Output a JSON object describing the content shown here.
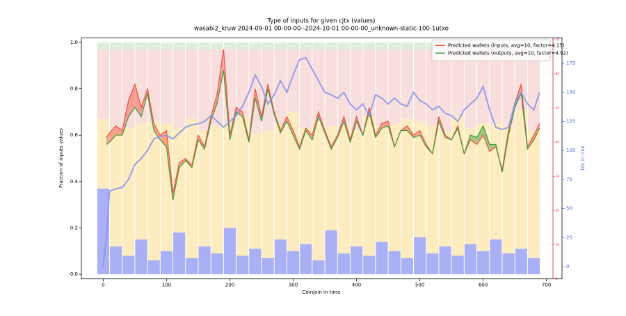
{
  "chart_data": {
    "type": "line",
    "title": "Type of inputs for given cjtx (values)",
    "subtitle": "wasabi2_kruw 2024-09-01 00-00-00--2024-10-01 00-00-00_unknown-static-100-1utxo",
    "xlabel": "Coinjoin in time",
    "ylabel": "Fraction of inputs values",
    "y2label": "btc in mix",
    "xlim": [
      -34.5,
      724.5
    ],
    "xticks": [
      0,
      100,
      200,
      300,
      400,
      500,
      600,
      700
    ],
    "ylim": [
      -0.02,
      1.02
    ],
    "yticks": [
      {
        "value": 0,
        "label": "0.0"
      },
      0.2,
      0.4,
      0.6,
      0.8,
      {
        "value": 1,
        "label": "1.0"
      }
    ],
    "y2lim": [
      -10.6,
      197
    ],
    "y2ticks": [
      0,
      25,
      50,
      75,
      100,
      125,
      150,
      175
    ],
    "y2color": "#4a6bd6",
    "y3lim": [
      0,
      70.5
    ],
    "y3ticks": [
      0,
      10,
      20,
      30,
      40,
      50,
      60,
      70
    ],
    "y3color": "#d62728",
    "legend": "upper right",
    "x": [
      0,
      5,
      10,
      20,
      30,
      40,
      50,
      60,
      70,
      80,
      90,
      100,
      110,
      120,
      130,
      140,
      150,
      160,
      170,
      180,
      190,
      200,
      210,
      220,
      230,
      240,
      250,
      260,
      270,
      280,
      290,
      300,
      310,
      320,
      330,
      340,
      350,
      360,
      370,
      380,
      390,
      400,
      410,
      420,
      430,
      440,
      450,
      460,
      470,
      480,
      490,
      500,
      510,
      520,
      530,
      540,
      550,
      560,
      570,
      580,
      590,
      600,
      610,
      620,
      630,
      640,
      650,
      660,
      670,
      680,
      689
    ],
    "series": [
      {
        "name": "Predicted wallets (inputs, avg=10, factor=4.15)",
        "color": "#f0503c",
        "values": [
          null,
          0.59,
          0.61,
          0.64,
          0.62,
          0.75,
          0.82,
          0.72,
          0.8,
          0.65,
          0.6,
          0.62,
          0.35,
          0.48,
          0.5,
          0.47,
          0.6,
          0.55,
          0.68,
          0.78,
          0.97,
          0.6,
          0.72,
          0.7,
          0.58,
          0.8,
          0.68,
          0.82,
          0.7,
          0.62,
          0.68,
          0.62,
          0.55,
          0.63,
          0.6,
          0.7,
          0.62,
          0.55,
          0.6,
          0.68,
          0.58,
          0.68,
          0.6,
          0.72,
          0.6,
          0.65,
          0.66,
          0.55,
          0.62,
          0.64,
          0.6,
          0.62,
          0.56,
          0.52,
          0.68,
          0.6,
          0.58,
          0.64,
          0.52,
          0.58,
          0.56,
          0.6,
          0.53,
          0.55,
          0.45,
          0.62,
          0.74,
          0.82,
          0.55,
          0.6,
          0.65
        ]
      },
      {
        "name": "Predicted wallets (outputs, avg=10, factor=4.92)",
        "color": "#3a9a3a",
        "values": [
          null,
          0.56,
          0.57,
          0.6,
          0.6,
          0.68,
          0.72,
          0.68,
          0.78,
          0.62,
          0.58,
          0.55,
          0.32,
          0.46,
          0.49,
          0.46,
          0.58,
          0.54,
          0.66,
          0.74,
          0.88,
          0.58,
          0.7,
          0.68,
          0.57,
          0.76,
          0.66,
          0.8,
          0.69,
          0.61,
          0.66,
          0.6,
          0.54,
          0.62,
          0.58,
          0.68,
          0.61,
          0.54,
          0.59,
          0.66,
          0.57,
          0.66,
          0.6,
          0.7,
          0.59,
          0.63,
          0.64,
          0.55,
          0.62,
          0.62,
          0.59,
          0.6,
          0.55,
          0.52,
          0.66,
          0.59,
          0.58,
          0.63,
          0.52,
          0.6,
          0.59,
          0.64,
          0.56,
          0.56,
          0.44,
          0.6,
          0.72,
          0.78,
          0.54,
          0.58,
          0.63
        ]
      },
      {
        "name": "btc in mix",
        "color": "#8a98e8",
        "axis": "y2",
        "values": [
          0,
          25,
          65,
          67,
          68,
          75,
          88,
          93,
          100,
          110,
          112,
          113,
          110,
          115,
          120,
          122,
          123,
          125,
          130,
          125,
          120,
          125,
          130,
          138,
          150,
          165,
          155,
          140,
          148,
          160,
          150,
          165,
          178,
          180,
          170,
          160,
          150,
          148,
          145,
          150,
          140,
          135,
          140,
          130,
          148,
          145,
          140,
          145,
          140,
          138,
          150,
          143,
          140,
          135,
          138,
          132,
          130,
          125,
          135,
          140,
          145,
          155,
          135,
          120,
          118,
          120,
          140,
          150,
          140,
          135,
          150
        ]
      }
    ],
    "bar_x": [
      0,
      20,
      40,
      60,
      80,
      100,
      120,
      140,
      160,
      180,
      200,
      220,
      240,
      260,
      280,
      300,
      320,
      340,
      360,
      380,
      400,
      420,
      440,
      460,
      480,
      500,
      520,
      540,
      560,
      580,
      600,
      620,
      640,
      660,
      680
    ],
    "bar_width": 20,
    "bars": [
      {
        "color": "#aab0f5",
        "values": [
          0.37,
          0.12,
          0.08,
          0.15,
          0.06,
          0.1,
          0.18,
          0.07,
          0.12,
          0.09,
          0.2,
          0.08,
          0.11,
          0.07,
          0.15,
          0.1,
          0.13,
          0.06,
          0.19,
          0.09,
          0.12,
          0.08,
          0.14,
          0.1,
          0.07,
          0.16,
          0.09,
          0.12,
          0.08,
          0.13,
          0.1,
          0.15,
          0.09,
          0.11,
          0.07
        ]
      },
      {
        "color": "#fdecc0",
        "values": [
          0.3,
          0.5,
          0.55,
          0.5,
          0.6,
          0.55,
          0.45,
          0.6,
          0.5,
          0.55,
          0.45,
          0.6,
          0.5,
          0.55,
          0.5,
          0.6,
          0.5,
          0.6,
          0.45,
          0.55,
          0.5,
          0.6,
          0.5,
          0.55,
          0.6,
          0.5,
          0.55,
          0.5,
          0.6,
          0.5,
          0.55,
          0.5,
          0.55,
          0.6,
          0.55
        ]
      },
      {
        "color": "#f9dede",
        "values": [
          0.3,
          0.35,
          0.34,
          0.32,
          0.31,
          0.32,
          0.34,
          0.3,
          0.35,
          0.33,
          0.32,
          0.29,
          0.36,
          0.35,
          0.32,
          0.27,
          0.34,
          0.31,
          0.33,
          0.33,
          0.35,
          0.29,
          0.33,
          0.32,
          0.3,
          0.31,
          0.33,
          0.35,
          0.29,
          0.34,
          0.32,
          0.32,
          0.33,
          0.26,
          0.35
        ]
      },
      {
        "color": "#dcefdc",
        "values": [
          0.03,
          0.03,
          0.03,
          0.03,
          0.03,
          0.03,
          0.03,
          0.03,
          0.03,
          0.03,
          0.03,
          0.03,
          0.03,
          0.03,
          0.03,
          0.03,
          0.03,
          0.03,
          0.03,
          0.03,
          0.03,
          0.03,
          0.03,
          0.03,
          0.03,
          0.03,
          0.03,
          0.03,
          0.03,
          0.03,
          0.03,
          0.03,
          0.03,
          0.03,
          0.03
        ]
      }
    ]
  }
}
